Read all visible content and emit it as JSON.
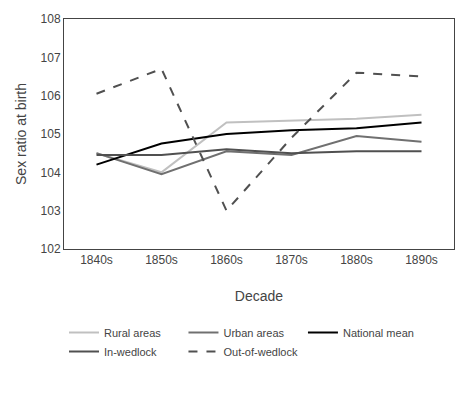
{
  "chart_data": {
    "type": "line",
    "x": [
      1840,
      1850,
      1860,
      1870,
      1880,
      1890
    ],
    "xlabel": "Decade",
    "ylabel": "Sex ratio at birth",
    "xlim": [
      1835,
      1895
    ],
    "xticks": [
      {
        "value": 1840,
        "label": "1840s"
      },
      {
        "value": 1850,
        "label": "1850s"
      },
      {
        "value": 1860,
        "label": "1860s"
      },
      {
        "value": 1870,
        "label": "1870s"
      },
      {
        "value": 1880,
        "label": "1880s"
      },
      {
        "value": 1890,
        "label": "1890s"
      }
    ],
    "ylim": [
      102,
      108
    ],
    "yticks": [
      102,
      103,
      104,
      105,
      106,
      107,
      108
    ],
    "grid": false,
    "legend": "bottom",
    "series": [
      {
        "name": "Rural areas",
        "color": "#c0c0c0",
        "line_style": "solid",
        "values": [
          104.5,
          104.0,
          105.3,
          105.35,
          105.4,
          105.5
        ]
      },
      {
        "name": "Urban areas",
        "color": "#707070",
        "line_style": "solid",
        "values": [
          104.5,
          103.95,
          104.55,
          104.45,
          104.95,
          104.8
        ]
      },
      {
        "name": "National mean",
        "color": "#000000",
        "line_style": "solid",
        "values": [
          104.2,
          104.75,
          105.0,
          105.1,
          105.15,
          105.3
        ]
      },
      {
        "name": "In-wedlock",
        "color": "#505050",
        "line_style": "solid",
        "values": [
          104.45,
          104.45,
          104.6,
          104.5,
          104.55,
          104.55
        ]
      },
      {
        "name": "Out-of-wedlock",
        "color": "#505050",
        "line_style": "dashed",
        "values": [
          106.05,
          106.7,
          103.0,
          104.9,
          106.6,
          106.5
        ]
      }
    ]
  }
}
